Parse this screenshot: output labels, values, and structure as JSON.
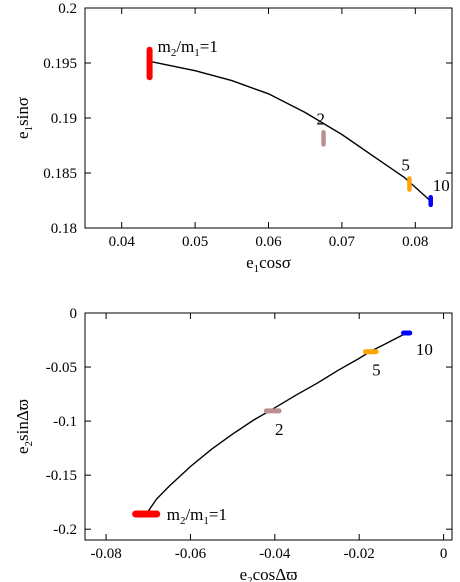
{
  "chart_data": [
    {
      "type": "line",
      "xlabel_parts": [
        "e",
        "1",
        "cosσ"
      ],
      "ylabel_parts": [
        "e",
        "1",
        "sinσ"
      ],
      "xlim": [
        0.035,
        0.085
      ],
      "ylim": [
        0.18,
        0.2
      ],
      "xticks": [
        0.04,
        0.05,
        0.06,
        0.07,
        0.08
      ],
      "xtick_labels": [
        "0.04",
        "0.05",
        "0.06",
        "0.07",
        "0.08"
      ],
      "yticks": [
        0.18,
        0.185,
        0.19,
        0.195,
        0.2
      ],
      "ytick_labels": [
        "0.18",
        "0.185",
        "0.19",
        "0.195",
        "0.2"
      ],
      "curve": {
        "x": [
          0.0442,
          0.05,
          0.055,
          0.06,
          0.065,
          0.07,
          0.075,
          0.0785,
          0.082
        ],
        "y": [
          0.1951,
          0.1943,
          0.1934,
          0.1922,
          0.1905,
          0.1885,
          0.1862,
          0.1846,
          0.1825
        ]
      },
      "clusters": [
        {
          "name_parts": [
            "m",
            "2",
            "/m",
            "1",
            "=1"
          ],
          "x": 0.0438,
          "y0": 0.1937,
          "y1": 0.1962,
          "color": "#ff0000"
        },
        {
          "name_parts": [
            "2"
          ],
          "x": 0.0675,
          "y0": 0.1876,
          "y1": 0.1887,
          "color": "#bc8f8f"
        },
        {
          "name_parts": [
            "5"
          ],
          "x": 0.0792,
          "y0": 0.1835,
          "y1": 0.1845,
          "color": "#ffa500"
        },
        {
          "name_parts": [
            "10"
          ],
          "x": 0.0821,
          "y0": 0.1821,
          "y1": 0.1828,
          "color": "#0000ff"
        }
      ]
    },
    {
      "type": "line",
      "xlabel_parts": [
        "e",
        "2",
        "cosΔϖ"
      ],
      "ylabel_parts": [
        "e",
        "2",
        "sinΔϖ"
      ],
      "xlim": [
        -0.085,
        0.002
      ],
      "ylim": [
        -0.21,
        0.0
      ],
      "xticks": [
        -0.08,
        -0.06,
        -0.04,
        -0.02,
        0.0
      ],
      "xtick_labels": [
        "-0.08",
        "-0.06",
        "-0.04",
        "-0.02",
        "0"
      ],
      "yticks": [
        -0.2,
        -0.15,
        -0.1,
        -0.05,
        0.0
      ],
      "ytick_labels": [
        "-0.2",
        "-0.15",
        "-0.1",
        "-0.05",
        "0"
      ],
      "curve": {
        "x": [
          -0.0705,
          -0.068,
          -0.065,
          -0.06,
          -0.055,
          -0.05,
          -0.045,
          -0.041,
          -0.035,
          -0.03,
          -0.025,
          -0.02,
          -0.0175,
          -0.012,
          -0.009
        ],
        "y": [
          -0.186,
          -0.172,
          -0.16,
          -0.142,
          -0.126,
          -0.112,
          -0.099,
          -0.09,
          -0.076,
          -0.065,
          -0.053,
          -0.042,
          -0.036,
          -0.025,
          -0.019
        ]
      },
      "clusters": [
        {
          "name_parts": [
            "m",
            "2",
            "/m",
            "1",
            "=1"
          ],
          "x0": -0.073,
          "x1": -0.068,
          "y": -0.186,
          "color": "#ff0000"
        },
        {
          "name_parts": [
            "2"
          ],
          "x0": -0.042,
          "x1": -0.039,
          "y": -0.0905,
          "color": "#bc8f8f"
        },
        {
          "name_parts": [
            "5"
          ],
          "x0": -0.0185,
          "x1": -0.016,
          "y": -0.0358,
          "color": "#ffa500"
        },
        {
          "name_parts": [
            "10"
          ],
          "x0": -0.0095,
          "x1": -0.008,
          "y": -0.0185,
          "color": "#0000ff"
        }
      ]
    }
  ]
}
